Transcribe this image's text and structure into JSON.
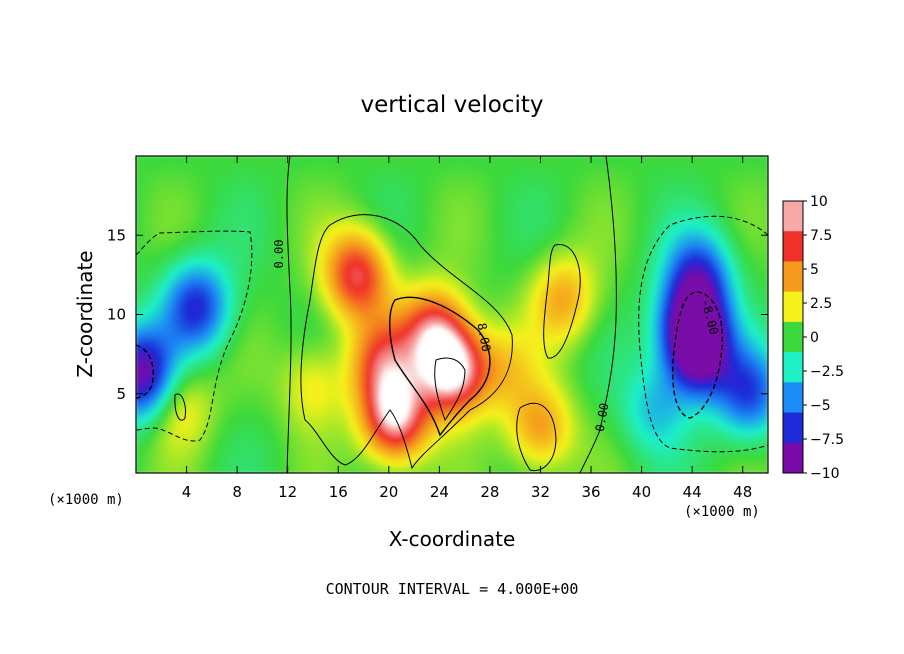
{
  "chart_data": {
    "type": "heatmap",
    "title": "vertical velocity",
    "xlabel": "X-coordinate",
    "ylabel": "Z-coordinate",
    "x_unit_left": "(×1000 m)",
    "x_unit_right": "(×1000 m)",
    "xlim": [
      0,
      50
    ],
    "ylim": [
      0,
      20
    ],
    "x_ticks": [
      4,
      8,
      12,
      16,
      20,
      24,
      28,
      32,
      36,
      40,
      44,
      48
    ],
    "y_ticks": [
      5,
      10,
      15
    ],
    "colorbar": {
      "levels": [
        10,
        7.5,
        5,
        2.5,
        0,
        -2.5,
        -5,
        -7.5,
        -10
      ],
      "labels": [
        "10",
        "7.5",
        "5",
        "2.5",
        "0",
        "−2.5",
        "−5",
        "−7.5",
        "−10"
      ],
      "colors": [
        "#f7a9a9",
        "#f0302a",
        "#f59a1c",
        "#f4f21a",
        "#3cd93c",
        "#1ef0c8",
        "#1a8cf5",
        "#1e2ad8",
        "#7a0aa8"
      ]
    },
    "contour_interval_label": "CONTOUR INTERVAL = 4.000E+00",
    "contour_labels": [
      "0.00",
      "8.00",
      "0.00",
      "-8.00"
    ],
    "features": [
      {
        "x": 0.4,
        "z": 6.3,
        "w": -10
      },
      {
        "x": 4.8,
        "z": 10.5,
        "w": -7.5
      },
      {
        "x": 3.5,
        "z": 4.2,
        "w": 3
      },
      {
        "x": 17.5,
        "z": 12.5,
        "w": 8
      },
      {
        "x": 23.5,
        "z": 9.0,
        "w": 7
      },
      {
        "x": 25.0,
        "z": 6.5,
        "w": 11
      },
      {
        "x": 20.5,
        "z": 3.5,
        "w": 10
      },
      {
        "x": 19.5,
        "z": 7.0,
        "w": 6
      },
      {
        "x": 14.0,
        "z": 5.5,
        "w": 3
      },
      {
        "x": 29.0,
        "z": 6.5,
        "w": 3
      },
      {
        "x": 32.0,
        "z": 2.8,
        "w": 5
      },
      {
        "x": 33.8,
        "z": 11.0,
        "w": 4.5
      },
      {
        "x": 44.5,
        "z": 7.5,
        "w": -9.5
      },
      {
        "x": 44.0,
        "z": 9.5,
        "w": -9
      },
      {
        "x": 44.5,
        "z": 12.5,
        "w": -6.5
      },
      {
        "x": 48.5,
        "z": 5.0,
        "w": -6.5
      },
      {
        "x": 41.0,
        "z": 4.0,
        "w": -3.5
      }
    ]
  }
}
